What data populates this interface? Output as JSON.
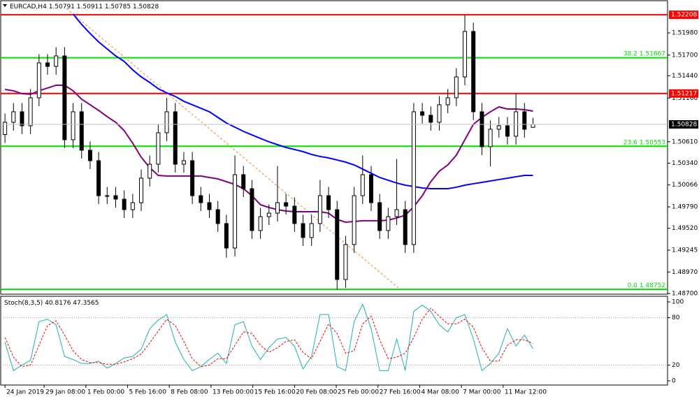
{
  "chart_data": {
    "type": "candlestick",
    "symbol": "EURCAD,H4",
    "xlim": [
      -0.5,
      77.8
    ],
    "xticks": [
      {
        "value": 0,
        "label": "24 Jan 2019"
      },
      {
        "value": 4.6,
        "label": "29 Jan 08:00"
      },
      {
        "value": 9.5,
        "label": "1 Feb 00:00"
      },
      {
        "value": 14.4,
        "label": "5 Feb 16:00"
      },
      {
        "value": 19.3,
        "label": "8 Feb 08:00"
      },
      {
        "value": 24.2,
        "label": "13 Feb 00:00"
      },
      {
        "value": 29.1,
        "label": "15 Feb 16:00"
      },
      {
        "value": 34,
        "label": "20 Feb 08:00"
      },
      {
        "value": 38.9,
        "label": "25 Feb 00:00"
      },
      {
        "value": 43.8,
        "label": "27 Feb 16:00"
      },
      {
        "value": 48.7,
        "label": "4 Mar 08:00"
      },
      {
        "value": 53.6,
        "label": "7 Mar 00:00"
      },
      {
        "value": 58.5,
        "label": "11 Mar 12:00"
      }
    ],
    "ylim": [
      1.48691,
      1.52376
    ],
    "yticks": [
      {
        "value": 1.5198,
        "label": "1.51980"
      },
      {
        "value": 1.517,
        "label": "1.51700"
      },
      {
        "value": 1.5144,
        "label": "1.51440"
      },
      {
        "value": 1.5116,
        "label": "1.51160"
      },
      {
        "value": 1.5061,
        "label": "1.50610"
      },
      {
        "value": 1.5034,
        "label": "1.50340"
      },
      1.50066,
      {
        "value": 1.4979,
        "label": "1.49790"
      },
      {
        "value": 1.4952,
        "label": "1.49520"
      },
      1.49245,
      {
        "value": 1.4897,
        "label": "1.48970"
      },
      {
        "value": 1.487,
        "label": "1.48700"
      }
    ],
    "up_color": "#ffffff",
    "down_color": "#000000",
    "ohlc": {
      "open": [
        1.507,
        1.50855,
        1.50987,
        1.50811,
        1.51163,
        1.51602,
        1.51558,
        1.5169,
        1.50635,
        1.50987,
        1.50503,
        1.50371,
        1.49931,
        1.49931,
        1.49887,
        1.49755,
        1.49843,
        1.50151,
        1.50327,
        1.50723,
        1.50987,
        1.50327,
        1.50371,
        1.49931,
        1.49843,
        1.49755,
        1.4958,
        1.49272,
        1.50195,
        1.50019,
        1.49492,
        1.49667,
        1.49711,
        1.49843,
        1.49799,
        1.4958,
        1.49404,
        1.4958,
        1.49931,
        1.49755,
        1.48876,
        1.49316,
        1.49931,
        1.50195,
        1.49843,
        1.49492,
        1.49667,
        1.49755,
        1.49316,
        1.50987,
        1.50943,
        1.50855,
        1.51075,
        1.51163,
        1.51426,
        1.51998,
        1.50987,
        1.50547,
        1.50767,
        1.50811,
        1.50679,
        1.50987,
        1.50791
      ],
      "high": [
        1.50965,
        1.51097,
        1.51097,
        1.51273,
        1.51712,
        1.51712,
        1.518,
        1.518,
        1.51097,
        1.51097,
        1.50613,
        1.50481,
        1.50041,
        1.50041,
        1.49997,
        1.49953,
        1.50261,
        1.50437,
        1.50833,
        1.51163,
        1.51097,
        1.50481,
        1.50481,
        1.50041,
        1.49953,
        1.49865,
        1.4969,
        1.50437,
        1.50305,
        1.50129,
        1.49777,
        1.49821,
        1.50305,
        1.49953,
        1.49909,
        1.4969,
        1.4969,
        1.50129,
        1.50041,
        1.49865,
        1.49426,
        1.50041,
        1.50437,
        1.50305,
        1.49953,
        1.49777,
        1.50393,
        1.49865,
        1.51097,
        1.51097,
        1.51053,
        1.51185,
        1.51273,
        1.51536,
        1.52208,
        1.52108,
        1.51097,
        1.50877,
        1.50921,
        1.50921,
        1.51217,
        1.51097,
        1.50911
      ],
      "low": [
        1.50595,
        1.5075,
        1.50706,
        1.50706,
        1.51058,
        1.51453,
        1.51453,
        1.5053,
        1.5053,
        1.50398,
        1.50266,
        1.49826,
        1.49826,
        1.49782,
        1.4965,
        1.4965,
        1.49738,
        1.50046,
        1.50222,
        1.50618,
        1.50222,
        1.50222,
        1.49826,
        1.49738,
        1.4965,
        1.49475,
        1.4915,
        1.49167,
        1.49914,
        1.49387,
        1.49387,
        1.49562,
        1.49606,
        1.49694,
        1.49475,
        1.49299,
        1.49299,
        1.49475,
        1.4965,
        1.48752,
        1.48771,
        1.49211,
        1.49826,
        1.49738,
        1.49387,
        1.49387,
        1.49562,
        1.49211,
        1.49211,
        1.50838,
        1.5075,
        1.5075,
        1.5097,
        1.51058,
        1.51321,
        1.50882,
        1.50442,
        1.503,
        1.50662,
        1.50574,
        1.50574,
        1.50662,
        1.50785
      ],
      "close": [
        1.50855,
        1.50987,
        1.50811,
        1.51163,
        1.51602,
        1.51558,
        1.5169,
        1.50635,
        1.50987,
        1.50503,
        1.50371,
        1.49931,
        1.49931,
        1.49887,
        1.49755,
        1.49843,
        1.50151,
        1.50327,
        1.50723,
        1.50987,
        1.50327,
        1.50371,
        1.49931,
        1.49843,
        1.49755,
        1.4958,
        1.49272,
        1.50195,
        1.50019,
        1.49492,
        1.49667,
        1.49711,
        1.49843,
        1.49799,
        1.4958,
        1.49404,
        1.4958,
        1.49931,
        1.49755,
        1.48876,
        1.49316,
        1.49931,
        1.50195,
        1.49843,
        1.49492,
        1.49667,
        1.49755,
        1.49316,
        1.50987,
        1.50943,
        1.50855,
        1.51075,
        1.51163,
        1.51426,
        1.51998,
        1.50987,
        1.50547,
        1.50767,
        1.50811,
        1.50679,
        1.50987,
        1.50767,
        1.50828
      ]
    },
    "moving_averages": [
      {
        "color": "#0000ff",
        "values": [
          null,
          null,
          null,
          null,
          null,
          null,
          null,
          null,
          1.52218,
          1.52086,
          1.51972,
          1.51866,
          1.51778,
          1.5169,
          1.5162,
          1.51514,
          1.51426,
          1.51356,
          1.51277,
          1.51224,
          1.5118,
          1.51119,
          1.51075,
          1.51031,
          1.50987,
          1.50916,
          1.50846,
          1.50793,
          1.5074,
          1.50696,
          1.50652,
          1.50609,
          1.50573,
          1.50538,
          1.50512,
          1.50485,
          1.5045,
          1.50424,
          1.50406,
          1.5038,
          1.50353,
          1.50318,
          1.50266,
          1.50213,
          1.5016,
          1.50125,
          1.5009,
          1.50063,
          1.50046,
          1.50028,
          1.50019,
          1.50019,
          1.50019,
          1.50037,
          1.50063,
          1.50081,
          1.50098,
          1.50116,
          1.50134,
          1.50151,
          1.50169,
          1.50186,
          1.50186
        ]
      },
      {
        "color": "#800080",
        "values": [
          1.51268,
          1.51251,
          1.51215,
          1.51207,
          1.51251,
          1.51286,
          1.51321,
          1.51321,
          1.51251,
          1.51145,
          1.51075,
          1.51004,
          1.50925,
          1.50855,
          1.50749,
          1.50591,
          1.50415,
          1.50283,
          1.50186,
          1.50178,
          1.50178,
          1.50178,
          1.50178,
          1.50178,
          1.5016,
          1.50142,
          1.50107,
          1.50072,
          1.50019,
          1.49931,
          1.49817,
          1.49782,
          1.49755,
          1.49738,
          1.49729,
          1.49729,
          1.49729,
          1.49729,
          1.49711,
          1.49632,
          1.49597,
          1.49606,
          1.49615,
          1.49615,
          1.49615,
          1.49623,
          1.4965,
          1.49685,
          1.49791,
          1.49931,
          1.50107,
          1.50239,
          1.50318,
          1.50441,
          1.50635,
          1.50828,
          1.50916,
          1.50987,
          1.51048,
          1.51022,
          1.51022,
          1.51013,
          1.50995
        ]
      }
    ],
    "hlines": [
      {
        "value": 1.52208,
        "color": "#ff0000"
      },
      {
        "value": 1.51217,
        "color": "#ff0000"
      }
    ],
    "fib_color": "#00e000",
    "fib_levels": [
      {
        "level": "38.2",
        "value": 1.51667
      },
      {
        "level": "23.6",
        "value": 1.50553
      },
      {
        "level": "0.0",
        "value": 1.48752
      }
    ],
    "stoch": {
      "title": "Stoch(8,3,5)",
      "ylim": [
        -5.3,
        107.1
      ],
      "yticks": [
        100,
        80,
        20,
        0
      ],
      "levels": [
        80,
        20
      ],
      "series": [
        {
          "color": "#20b2aa",
          "values": [
            49,
            13,
            20,
            26,
            75,
            78,
            71,
            31,
            27,
            22,
            22,
            25,
            16,
            22,
            29,
            31,
            40,
            66,
            77,
            84,
            49,
            27,
            13,
            18,
            27,
            35,
            22,
            71,
            75,
            44,
            27,
            42,
            53,
            55,
            44,
            15,
            31,
            84,
            84,
            18,
            13,
            75,
            97,
            66,
            13,
            13,
            53,
            13,
            88,
            96,
            88,
            71,
            62,
            80,
            84,
            53,
            13,
            22,
            35,
            66,
            44,
            58,
            40.8176
          ]
        },
        {
          "color": "#ff0000",
          "dashed": true,
          "values": [
            55,
            30,
            18,
            20,
            45,
            70,
            76,
            58,
            38,
            27,
            23,
            23,
            21,
            21,
            24,
            28,
            34,
            48,
            63,
            78,
            70,
            50,
            28,
            18,
            20,
            28,
            28,
            45,
            62,
            60,
            45,
            36,
            42,
            50,
            52,
            36,
            28,
            50,
            72,
            60,
            35,
            38,
            72,
            82,
            52,
            28,
            30,
            35,
            55,
            78,
            92,
            82,
            72,
            72,
            78,
            68,
            42,
            25,
            25,
            45,
            52,
            52,
            47.3565
          ]
        }
      ]
    }
  }
}
